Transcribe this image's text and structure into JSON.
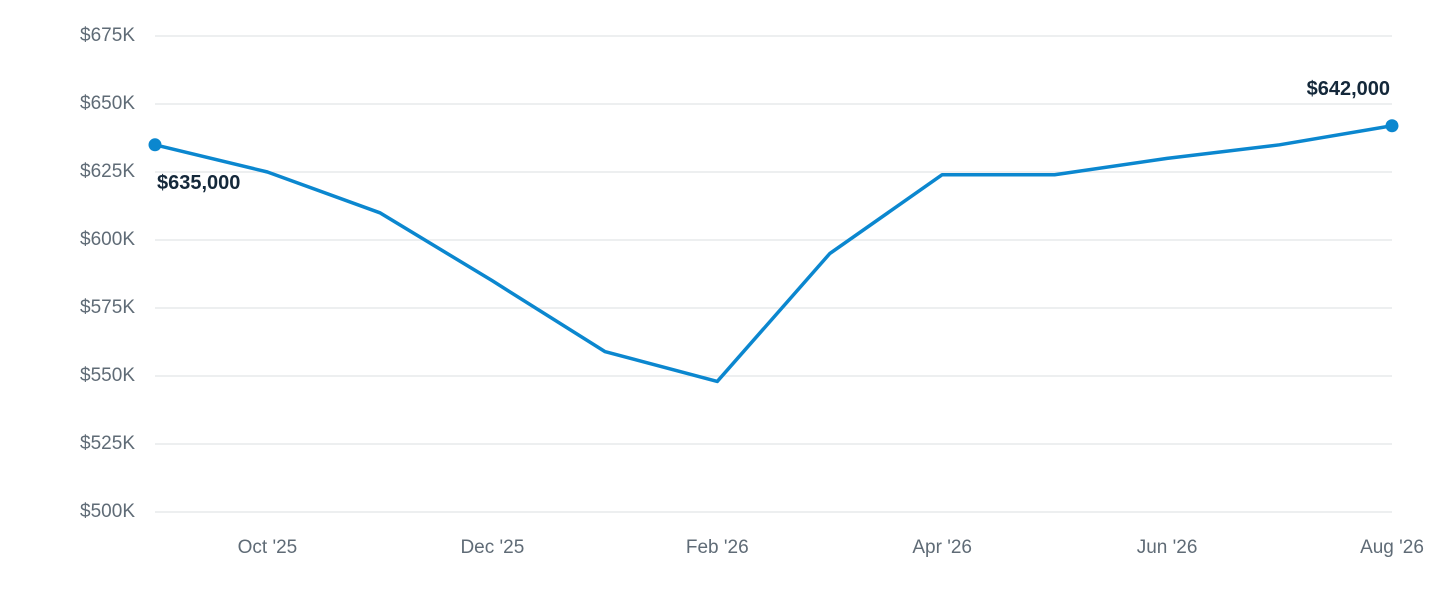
{
  "chart_data": {
    "type": "line",
    "categories": [
      null,
      "Oct '25",
      null,
      "Dec '25",
      null,
      "Feb '26",
      null,
      "Apr '26",
      null,
      "Jun '26",
      null,
      "Aug '26"
    ],
    "series": [
      {
        "color": "#0b87cf",
        "values": [
          635000,
          625000,
          610000,
          585000,
          559000,
          548000,
          595000,
          624000,
          624000,
          630000,
          635000,
          642000
        ],
        "value_labels": [
          "$635,000",
          null,
          null,
          null,
          null,
          null,
          null,
          null,
          null,
          null,
          null,
          "$642,000"
        ]
      }
    ],
    "ylim": [
      500000,
      675000
    ],
    "yticks": [
      {
        "value": 500000,
        "label": "$500K"
      },
      {
        "value": 525000,
        "label": "$525K"
      },
      {
        "value": 550000,
        "label": "$550K"
      },
      {
        "value": 575000,
        "label": "$575K"
      },
      {
        "value": 600000,
        "label": "$600K"
      },
      {
        "value": 625000,
        "label": "$625K"
      },
      {
        "value": 650000,
        "label": "$650K"
      },
      {
        "value": 675000,
        "label": "$675K"
      }
    ],
    "grid": true
  }
}
